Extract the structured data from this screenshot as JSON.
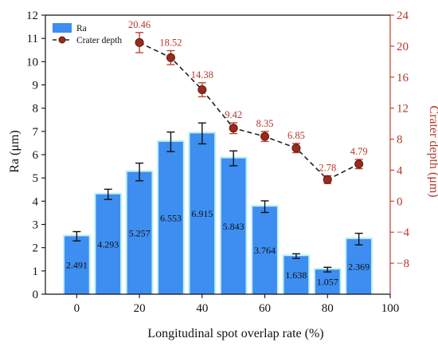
{
  "chart_data": {
    "type": "bar+line",
    "x_ticks": [
      0,
      20,
      40,
      60,
      80,
      100
    ],
    "xlim": [
      -10,
      100
    ],
    "xlabel": "Longitudinal spot overlap rate (%)",
    "ylabel_left": "Ra (μm)",
    "ylim_left": [
      0,
      12
    ],
    "yticks_left": [
      0,
      1,
      2,
      3,
      4,
      5,
      6,
      7,
      8,
      9,
      10,
      11,
      12
    ],
    "ylabel_right": "Crater depth (μm)",
    "ylim_right": [
      -12,
      24
    ],
    "yticks_right": [
      -8,
      -4,
      0,
      4,
      8,
      12,
      16,
      20,
      24
    ],
    "legend": {
      "position": "top-left",
      "entries": [
        "Ra",
        "Crater depth"
      ]
    },
    "x": [
      0,
      10,
      20,
      30,
      40,
      50,
      60,
      70,
      80,
      90
    ],
    "ra": {
      "name": "Ra",
      "color": "#3d8ef0",
      "values": [
        2.491,
        4.293,
        5.257,
        6.553,
        6.915,
        5.843,
        3.764,
        1.638,
        1.057,
        2.369
      ],
      "labels": [
        "2.491",
        "4.293",
        "5.257",
        "6.553",
        "6.915",
        "5.843",
        "3.764",
        "1.638",
        "1.057",
        "2.369"
      ],
      "errors": [
        0.2,
        0.22,
        0.38,
        0.42,
        0.45,
        0.32,
        0.25,
        0.1,
        0.1,
        0.25
      ]
    },
    "crater": {
      "name": "Crater depth",
      "color": "#b02a1e",
      "values": [
        20.46,
        18.52,
        14.38,
        9.42,
        8.35,
        6.85,
        2.78,
        4.79
      ],
      "x": [
        20,
        30,
        40,
        50,
        60,
        70,
        80,
        90
      ],
      "labels": [
        "20.46",
        "18.52",
        "14.38",
        "9.42",
        "8.35",
        "6.85",
        "2.78",
        "4.79"
      ],
      "errors": [
        1.3,
        0.9,
        0.9,
        0.7,
        0.65,
        0.6,
        0.5,
        0.6
      ]
    }
  }
}
